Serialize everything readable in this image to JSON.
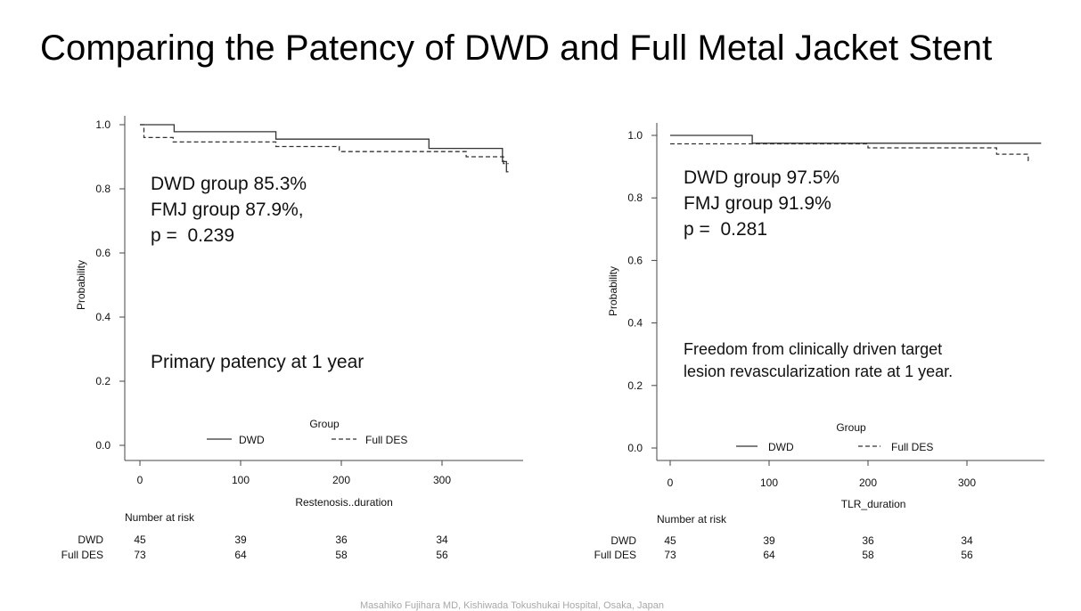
{
  "slide": {
    "title": "Comparing the Patency of DWD and Full Metal Jacket Stent",
    "footer": "Masahiko Fujihara MD, Kishiwada Tokushukai Hospital, Osaka, Japan"
  },
  "chart_data": [
    {
      "type": "line",
      "subtype": "kaplan-meier",
      "xlabel": "Restenosis..duration",
      "ylabel": "Probability",
      "xlim": [
        0,
        370
      ],
      "ylim": [
        0,
        1
      ],
      "xticks": [
        "0",
        "100",
        "200",
        "300"
      ],
      "yticks": [
        "0.0",
        "0.2",
        "0.4",
        "0.6",
        "0.8",
        "1.0"
      ],
      "legend": {
        "title": "Group",
        "placement": "bottom-center"
      },
      "series": [
        {
          "name": "DWD",
          "style": "solid",
          "color": "#333333",
          "x": [
            0,
            34,
            34,
            135,
            135,
            287,
            287,
            360,
            360,
            364,
            364,
            366
          ],
          "y": [
            1.0,
            1.0,
            0.978,
            0.978,
            0.955,
            0.955,
            0.926,
            0.926,
            0.885,
            0.885,
            0.853,
            0.853
          ]
        },
        {
          "name": "Full DES",
          "style": "dashed",
          "color": "#333333",
          "x": [
            0,
            4,
            4,
            33,
            33,
            135,
            135,
            198,
            198,
            324,
            324,
            361,
            361,
            366
          ],
          "y": [
            1.0,
            1.0,
            0.96,
            0.96,
            0.946,
            0.946,
            0.932,
            0.932,
            0.916,
            0.916,
            0.9,
            0.9,
            0.879,
            0.879
          ]
        }
      ],
      "annotations": [
        "DWD group 85.3%",
        "FMJ group 87.9%,",
        "p =  0.239",
        "Primary patency at 1 year"
      ],
      "risk_table": {
        "title": "Number at risk",
        "rows": [
          {
            "group": "DWD",
            "values": [
              "45",
              "39",
              "36",
              "34"
            ]
          },
          {
            "group": "Full DES",
            "values": [
              "73",
              "64",
              "58",
              "56"
            ]
          }
        ]
      }
    },
    {
      "type": "line",
      "subtype": "kaplan-meier",
      "xlabel": "TLR_duration",
      "ylabel": "Probability",
      "xlim": [
        0,
        375
      ],
      "ylim": [
        0,
        1
      ],
      "xticks": [
        "0",
        "100",
        "200",
        "300"
      ],
      "yticks": [
        "0.0",
        "0.2",
        "0.4",
        "0.6",
        "0.8",
        "1.0"
      ],
      "legend": {
        "title": "Group",
        "placement": "bottom-center"
      },
      "series": [
        {
          "name": "DWD",
          "style": "solid",
          "color": "#333333",
          "x": [
            0,
            83,
            83,
            375
          ],
          "y": [
            1.0,
            1.0,
            0.975,
            0.975
          ]
        },
        {
          "name": "Full DES",
          "style": "dashed",
          "color": "#333333",
          "x": [
            0,
            200,
            200,
            330,
            330,
            362,
            362,
            365
          ],
          "y": [
            0.973,
            0.973,
            0.96,
            0.96,
            0.94,
            0.94,
            0.919,
            0.919
          ]
        }
      ],
      "annotations": [
        "DWD group 97.5%",
        "FMJ group 91.9%",
        "p =  0.281",
        "Freedom from clinically driven target",
        "lesion revascularization rate at 1 year."
      ],
      "risk_table": {
        "title": "Number at risk",
        "rows": [
          {
            "group": "DWD",
            "values": [
              "45",
              "39",
              "36",
              "34"
            ]
          },
          {
            "group": "Full DES",
            "values": [
              "73",
              "64",
              "58",
              "56"
            ]
          }
        ]
      }
    }
  ]
}
